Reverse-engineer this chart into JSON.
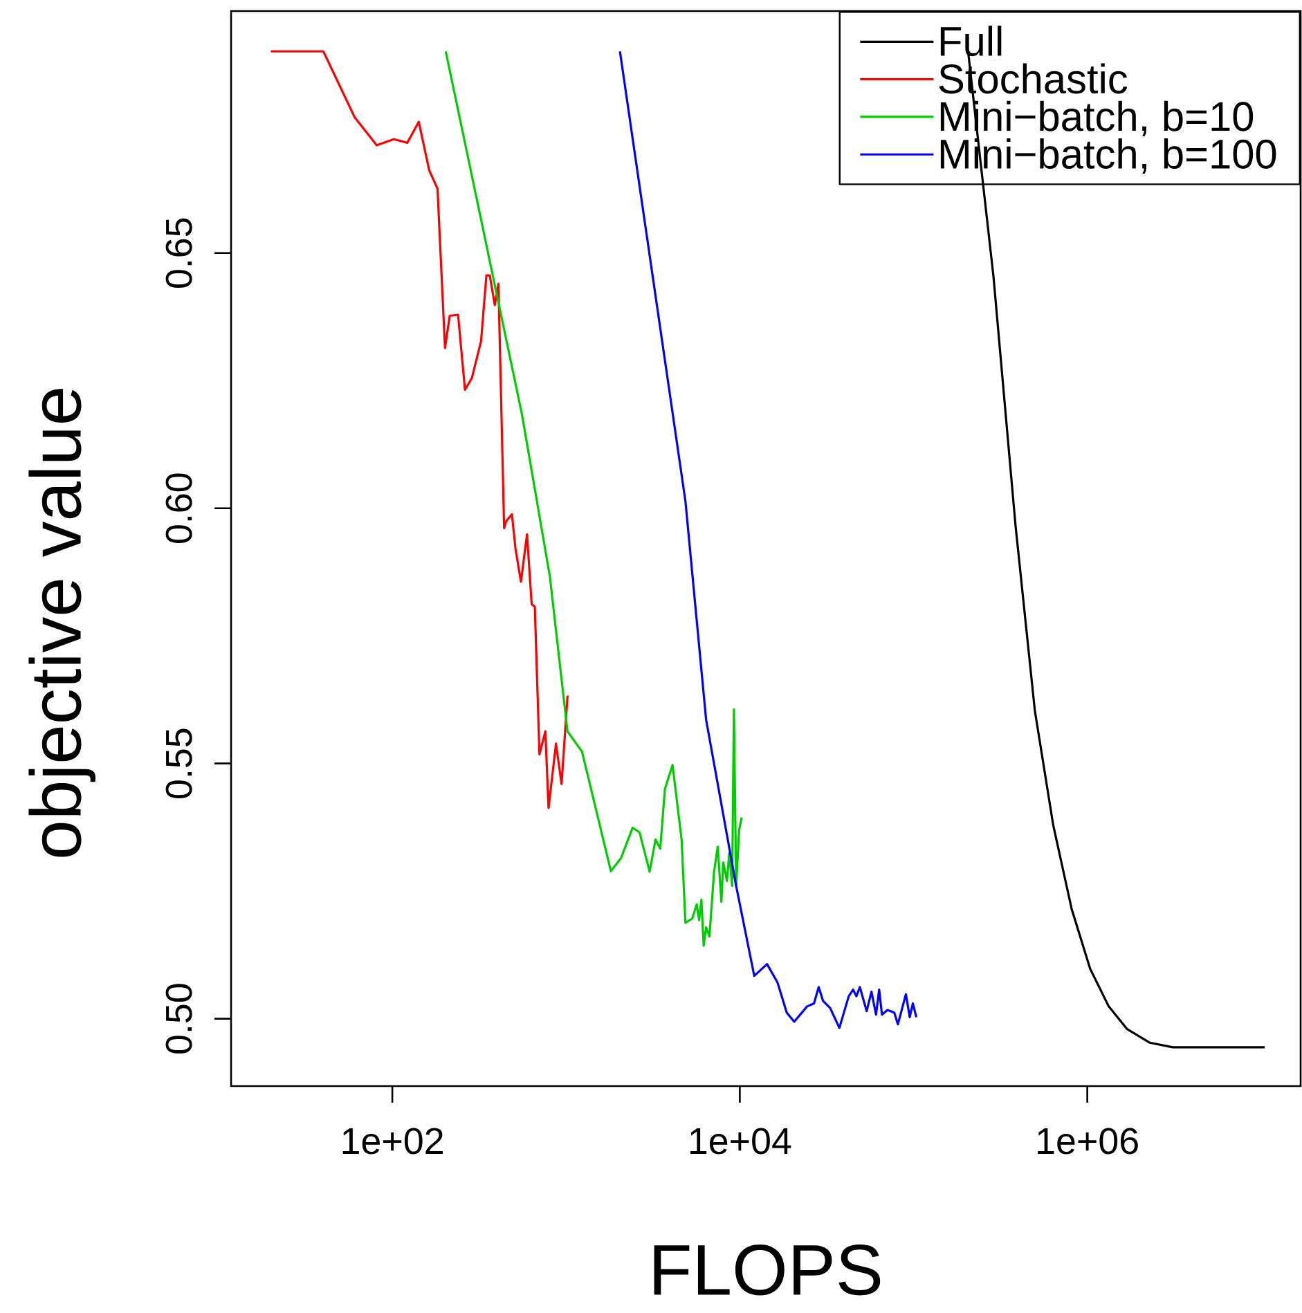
{
  "chart_data": {
    "type": "line",
    "xlabel": "FLOPS",
    "ylabel": "objective value",
    "log": "x",
    "legend": "top right",
    "xlim": [
      11.8,
      16900000
    ],
    "ylim": [
      0.4868,
      0.6974
    ],
    "xticks": [
      {
        "value": 100,
        "label": "1e+02"
      },
      {
        "value": 10000,
        "label": "1e+04"
      },
      {
        "value": 1000000,
        "label": "1e+06"
      }
    ],
    "yticks": [
      {
        "value": 0.5,
        "label": "0.50"
      },
      0.55,
      {
        "value": 0.6,
        "label": "0.60"
      },
      0.65
    ],
    "series": [
      {
        "name": "Full",
        "color": "#000000",
        "x": [
          206500,
          288400,
          386400,
          498900,
          636800,
          812800,
          1038000,
          1324000,
          1690000,
          2291000,
          3105000,
          10500000
        ],
        "values": [
          0.6892,
          0.6454,
          0.5966,
          0.5604,
          0.5379,
          0.5215,
          0.5098,
          0.5025,
          0.498,
          0.4953,
          0.4944,
          0.4944
        ]
      },
      {
        "name": "Stochastic",
        "color": "#ff0000",
        "x": [
          20,
          40.1,
          60.7,
          81.3,
          102,
          122,
          142,
          163,
          182,
          201,
          214,
          239,
          262,
          287,
          324,
          348,
          364,
          389,
          408,
          440,
          453,
          488,
          512,
          550,
          596,
          634,
          661,
          703,
          760,
          793,
          875,
          942,
          1020
        ],
        "values": [
          0.6895,
          0.6895,
          0.6766,
          0.6711,
          0.6723,
          0.6716,
          0.6757,
          0.6662,
          0.6626,
          0.6314,
          0.6377,
          0.6379,
          0.6232,
          0.6255,
          0.6327,
          0.6456,
          0.6456,
          0.6398,
          0.644,
          0.5961,
          0.5975,
          0.5988,
          0.592,
          0.5856,
          0.5949,
          0.5812,
          0.5807,
          0.5518,
          0.5563,
          0.5413,
          0.5539,
          0.546,
          0.5633
        ]
      },
      {
        "name": "Mini−batch, b=10",
        "color": "#00cd00",
        "x": [
          203,
          558,
          807,
          1019,
          1236,
          1811,
          2075,
          2415,
          2649,
          3027,
          3273,
          3483,
          3707,
          4102,
          4624,
          4864,
          5321,
          5649,
          5834,
          6012,
          6194,
          6397,
          6683,
          7112,
          7464,
          7834,
          8035,
          8433,
          8690,
          9036,
          9247,
          9528,
          9908,
          10230
        ],
        "values": [
          0.6895,
          0.6183,
          0.5866,
          0.5563,
          0.5523,
          0.5289,
          0.5315,
          0.5374,
          0.5365,
          0.5288,
          0.5351,
          0.5333,
          0.545,
          0.5497,
          0.5351,
          0.5188,
          0.5196,
          0.5224,
          0.5193,
          0.5233,
          0.5143,
          0.5179,
          0.5161,
          0.5288,
          0.5337,
          0.5229,
          0.5306,
          0.527,
          0.5324,
          0.526,
          0.5606,
          0.526,
          0.5369,
          0.5394
        ]
      },
      {
        "name": "Mini−batch, b=100",
        "color": "#0000ff",
        "x": [
          2042,
          4864,
          6397,
          9528,
          12110,
          14350,
          16480,
          18620,
          20560,
          24380,
          26730,
          28440,
          30130,
          33110,
          37410,
          42360,
          44870,
          46880,
          49090,
          53700,
          57280,
          60810,
          63390,
          65770,
          70790,
          77450,
          81280,
          90360,
          95060,
          99080,
          103700
        ],
        "values": [
          0.6895,
          0.6014,
          0.5586,
          0.526,
          0.5084,
          0.5107,
          0.5071,
          0.5012,
          0.4994,
          0.5024,
          0.503,
          0.5062,
          0.5035,
          0.5021,
          0.4982,
          0.5044,
          0.5057,
          0.5044,
          0.5062,
          0.5015,
          0.5053,
          0.5008,
          0.5057,
          0.5008,
          0.5017,
          0.5012,
          0.4989,
          0.5048,
          0.5003,
          0.503,
          0.5003
        ]
      }
    ]
  }
}
